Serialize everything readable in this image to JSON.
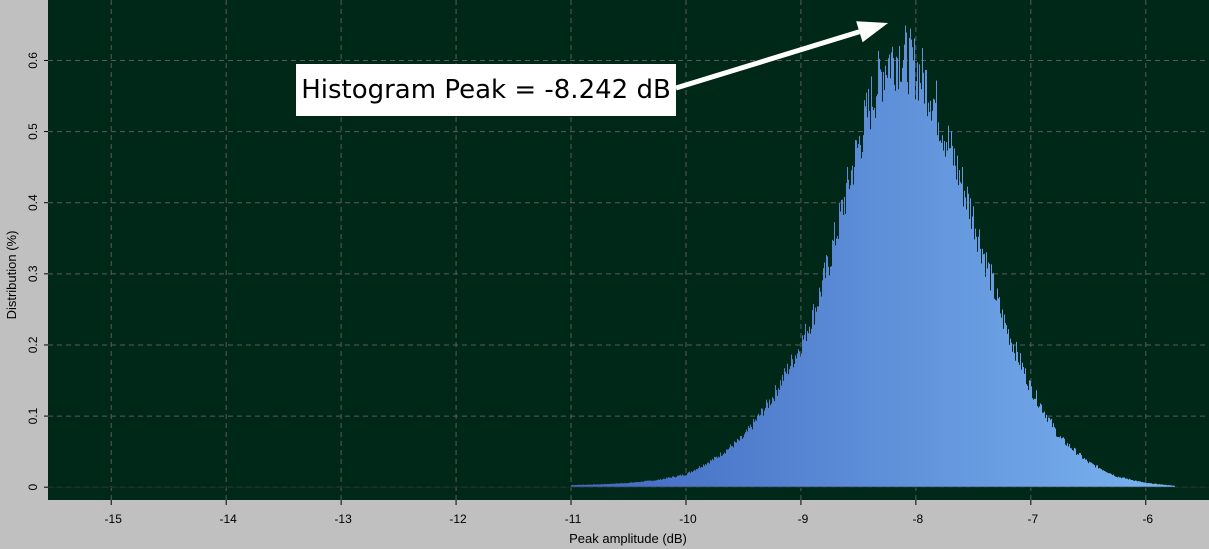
{
  "chart_data": {
    "type": "bar",
    "title": "",
    "xlabel": "Peak amplitude (dB)",
    "ylabel": "Distribution (%)",
    "xlim": [
      -15.55,
      -5.45
    ],
    "ylim": [
      -0.018,
      0.685
    ],
    "x_ticks": [
      -15,
      -14,
      -13,
      -12,
      -11,
      -10,
      -9,
      -8,
      -7,
      -6
    ],
    "x_tick_labels": [
      "-15",
      "-14",
      "-13",
      "-12",
      "-11",
      "-10",
      "-9",
      "-8",
      "-7",
      "-6"
    ],
    "y_ticks": [
      0,
      0.1,
      0.2,
      0.3,
      0.4,
      0.5,
      0.6
    ],
    "y_tick_labels": [
      "0",
      "0.1",
      "0.2",
      "0.3",
      "0.4",
      "0.5",
      "0.6"
    ],
    "grid": true,
    "histogram": {
      "x": [
        -11.0,
        -10.75,
        -10.5,
        -10.25,
        -10.0,
        -9.75,
        -9.5,
        -9.25,
        -9.0,
        -8.875,
        -8.75,
        -8.625,
        -8.5,
        -8.375,
        -8.25,
        -8.125,
        -8.0,
        -7.875,
        -7.75,
        -7.625,
        -7.5,
        -7.375,
        -7.25,
        -7.0,
        -6.75,
        -6.5,
        -6.25,
        -6.0,
        -5.75
      ],
      "y": [
        0.003,
        0.004,
        0.006,
        0.01,
        0.018,
        0.04,
        0.07,
        0.125,
        0.2,
        0.25,
        0.32,
        0.4,
        0.48,
        0.55,
        0.6,
        0.61,
        0.59,
        0.56,
        0.5,
        0.44,
        0.38,
        0.31,
        0.24,
        0.14,
        0.07,
        0.035,
        0.015,
        0.006,
        0.002
      ]
    },
    "annotation": {
      "text": "Histogram Peak = -8.242 dB",
      "target_x": -8.242
    }
  },
  "colors": {
    "plot_background": "#002818",
    "frame_background": "#c0c0c0",
    "grid": "#5a5a5a",
    "fill_left": "#4068c0",
    "fill_right": "#7ab4f0",
    "arrow": "#ffffff"
  }
}
